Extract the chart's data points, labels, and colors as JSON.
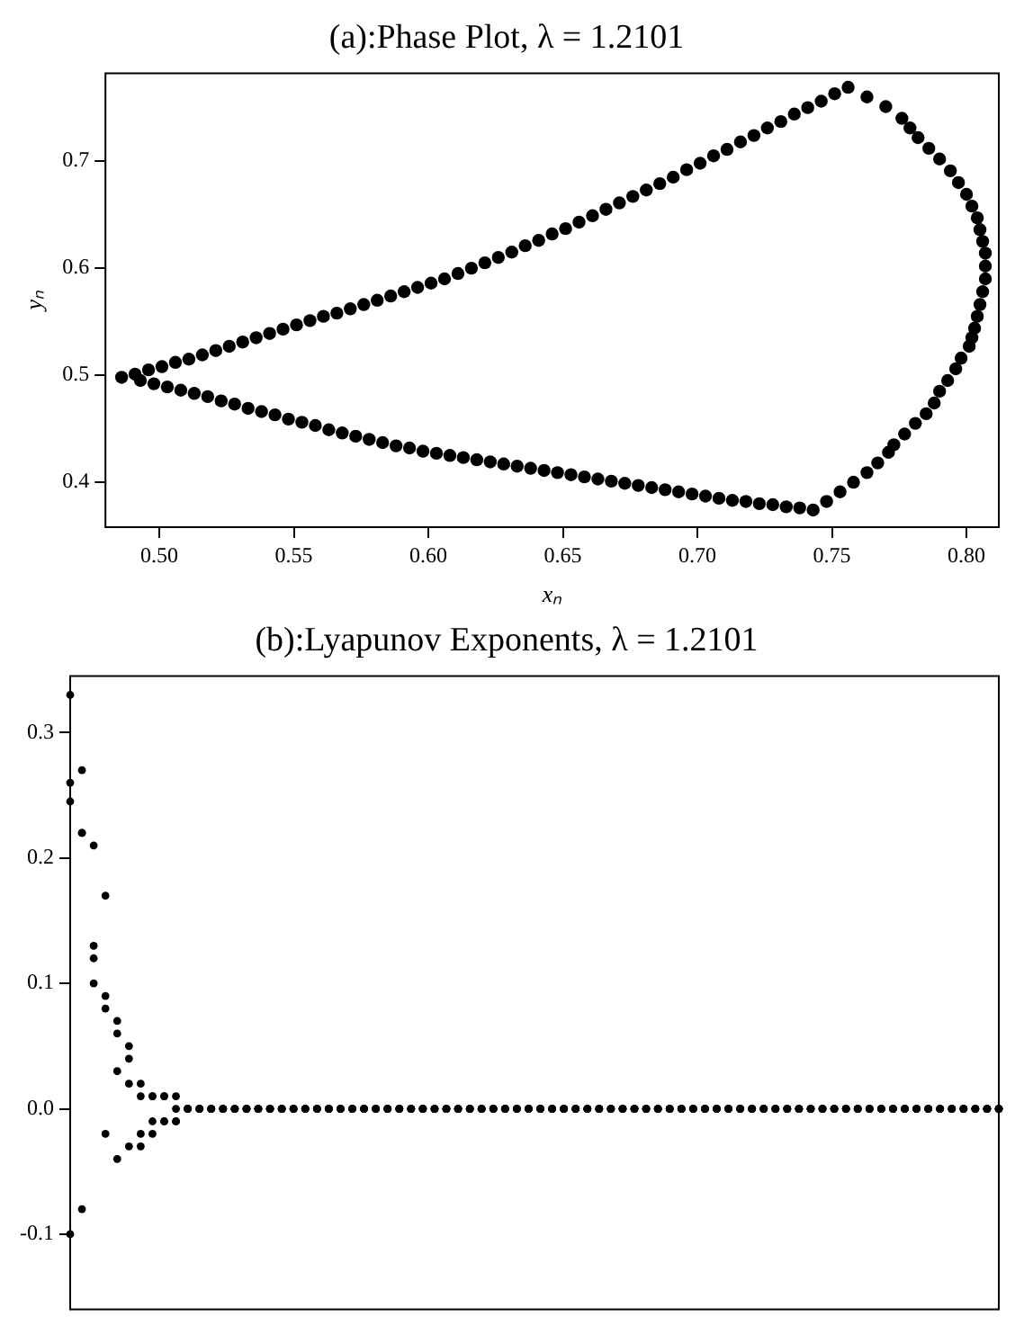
{
  "chart_data": [
    {
      "type": "scatter",
      "title": "(a):Phase Plot, λ = 1.2101",
      "xlabel": "xₙ",
      "ylabel": "yₙ",
      "marker": "circle",
      "xlim": [
        0.48,
        0.812
      ],
      "ylim": [
        0.358,
        0.782
      ],
      "xticks": [
        {
          "value": 0.5,
          "label": "0.50"
        },
        {
          "value": 0.55,
          "label": "0.55"
        },
        {
          "value": 0.6,
          "label": "0.60"
        },
        {
          "value": 0.65,
          "label": "0.65"
        },
        {
          "value": 0.7,
          "label": "0.70"
        },
        {
          "value": 0.75,
          "label": "0.75"
        },
        {
          "value": 0.8,
          "label": "0.80"
        }
      ],
      "yticks": [
        0.4,
        0.5,
        0.6,
        0.7
      ],
      "series": [
        {
          "color": "#000000",
          "x": [
            0.486,
            0.491,
            0.496,
            0.501,
            0.506,
            0.511,
            0.516,
            0.521,
            0.526,
            0.531,
            0.536,
            0.541,
            0.546,
            0.551,
            0.556,
            0.561,
            0.566,
            0.571,
            0.576,
            0.581,
            0.586,
            0.591,
            0.596,
            0.601,
            0.606,
            0.611,
            0.616,
            0.621,
            0.626,
            0.631,
            0.636,
            0.641,
            0.646,
            0.651,
            0.656,
            0.661,
            0.666,
            0.671,
            0.676,
            0.681,
            0.686,
            0.691,
            0.696,
            0.701,
            0.706,
            0.711,
            0.716,
            0.721,
            0.726,
            0.731,
            0.736,
            0.741,
            0.746,
            0.751,
            0.756,
            0.763,
            0.77,
            0.776,
            0.779,
            0.782,
            0.786,
            0.79,
            0.794,
            0.797,
            0.8,
            0.802,
            0.804,
            0.805,
            0.806,
            0.807,
            0.807,
            0.807,
            0.806,
            0.805,
            0.804,
            0.803,
            0.802,
            0.801,
            0.798,
            0.796,
            0.793,
            0.79,
            0.788,
            0.785,
            0.781,
            0.777,
            0.773,
            0.771,
            0.767,
            0.763,
            0.758,
            0.753,
            0.748,
            0.743,
            0.738,
            0.733,
            0.728,
            0.723,
            0.718,
            0.713,
            0.708,
            0.703,
            0.698,
            0.693,
            0.688,
            0.683,
            0.678,
            0.673,
            0.668,
            0.663,
            0.658,
            0.653,
            0.648,
            0.643,
            0.638,
            0.633,
            0.628,
            0.623,
            0.618,
            0.613,
            0.608,
            0.603,
            0.598,
            0.593,
            0.588,
            0.583,
            0.578,
            0.573,
            0.568,
            0.563,
            0.558,
            0.553,
            0.548,
            0.543,
            0.538,
            0.533,
            0.528,
            0.523,
            0.518,
            0.513,
            0.508,
            0.503,
            0.498,
            0.493
          ],
          "values": [
            0.498,
            0.501,
            0.505,
            0.508,
            0.512,
            0.515,
            0.519,
            0.523,
            0.527,
            0.531,
            0.535,
            0.539,
            0.543,
            0.547,
            0.551,
            0.555,
            0.558,
            0.562,
            0.566,
            0.57,
            0.574,
            0.578,
            0.582,
            0.586,
            0.59,
            0.595,
            0.6,
            0.605,
            0.61,
            0.615,
            0.621,
            0.626,
            0.632,
            0.637,
            0.643,
            0.649,
            0.655,
            0.661,
            0.667,
            0.673,
            0.679,
            0.685,
            0.692,
            0.698,
            0.705,
            0.711,
            0.718,
            0.724,
            0.731,
            0.737,
            0.744,
            0.75,
            0.756,
            0.763,
            0.769,
            0.76,
            0.751,
            0.74,
            0.731,
            0.722,
            0.712,
            0.702,
            0.691,
            0.68,
            0.669,
            0.658,
            0.647,
            0.636,
            0.625,
            0.614,
            0.602,
            0.59,
            0.578,
            0.566,
            0.555,
            0.544,
            0.535,
            0.527,
            0.516,
            0.506,
            0.495,
            0.485,
            0.474,
            0.464,
            0.455,
            0.445,
            0.435,
            0.428,
            0.418,
            0.409,
            0.4,
            0.391,
            0.382,
            0.374,
            0.376,
            0.377,
            0.379,
            0.38,
            0.382,
            0.383,
            0.385,
            0.387,
            0.389,
            0.391,
            0.393,
            0.395,
            0.397,
            0.399,
            0.401,
            0.403,
            0.405,
            0.407,
            0.409,
            0.411,
            0.413,
            0.415,
            0.417,
            0.419,
            0.421,
            0.423,
            0.425,
            0.427,
            0.429,
            0.432,
            0.434,
            0.437,
            0.44,
            0.443,
            0.446,
            0.449,
            0.453,
            0.456,
            0.459,
            0.463,
            0.466,
            0.469,
            0.473,
            0.476,
            0.48,
            0.483,
            0.486,
            0.489,
            0.492,
            0.495
          ]
        }
      ]
    },
    {
      "type": "scatter",
      "title": "(b):Lyapunov Exponents, λ = 1.2101",
      "marker": "circle",
      "tick_labels": "y",
      "ylim": [
        -0.16,
        0.345
      ],
      "yticks": [
        -0.1,
        {
          "value": 0,
          "label": "0.0"
        },
        0.1,
        0.2,
        0.3
      ],
      "categories": [
        null,
        null,
        null,
        null,
        null,
        null,
        null,
        null,
        null,
        null,
        null,
        null,
        null,
        null,
        null,
        null,
        null,
        null,
        null,
        null,
        null,
        null,
        null,
        null,
        null,
        null,
        null,
        null,
        null,
        null,
        null,
        null,
        null,
        null,
        null,
        null,
        null,
        null,
        null,
        null,
        null,
        null,
        null,
        null,
        null,
        null,
        null,
        null,
        null,
        null,
        null,
        null,
        null,
        null,
        null,
        null,
        null,
        null,
        null,
        null,
        null,
        null,
        null,
        null,
        null,
        null,
        null,
        null,
        null,
        null,
        null,
        null,
        null,
        null,
        null,
        null,
        null,
        null,
        null,
        null
      ],
      "series": [
        {
          "color": "#000000",
          "values": [
            0.33,
            0.27,
            0.13,
            0.09,
            0.07,
            0.05,
            0.02,
            0.01,
            0.01,
            0.01,
            0,
            0,
            0,
            0,
            0,
            0,
            0,
            0,
            0,
            0,
            0,
            0,
            0,
            0,
            0,
            0,
            0,
            0,
            0,
            0,
            0,
            0,
            0,
            0,
            0,
            0,
            0,
            0,
            0,
            0,
            0,
            0,
            0,
            0,
            0,
            0,
            0,
            0,
            0,
            0,
            0,
            0,
            0,
            0,
            0,
            0,
            0,
            0,
            0,
            0,
            0,
            0,
            0,
            0,
            0,
            0,
            0,
            0,
            0,
            0,
            0,
            0,
            0,
            0,
            0,
            0,
            0,
            0,
            0,
            0
          ]
        },
        {
          "color": "#000000",
          "values": [
            0.26,
            0.22,
            0.12,
            0.08,
            0.06,
            0.04,
            -0.03,
            -0.02,
            -0.01,
            -0.01,
            0,
            0,
            0,
            0,
            0,
            0,
            0,
            0,
            0,
            0,
            0,
            0,
            0,
            0,
            0,
            0,
            0,
            0,
            0,
            0,
            0,
            0,
            0,
            0,
            0,
            0,
            0,
            0,
            0,
            0,
            0,
            0,
            0,
            0,
            0,
            0,
            0,
            0,
            0,
            0,
            0,
            0,
            0,
            0,
            0,
            0,
            0,
            0,
            0,
            0,
            0,
            0,
            0,
            0,
            0,
            0,
            0,
            0,
            0,
            0,
            0,
            0,
            0,
            0,
            0,
            0,
            0,
            0,
            0,
            0
          ]
        },
        {
          "color": "#000000",
          "values": [
            -0.1,
            -0.08,
            0.21,
            0.17,
            -0.04,
            -0.03,
            0.01,
            -0.01,
            0.01,
            -0.01,
            0,
            0,
            0,
            0,
            0,
            0,
            0,
            0,
            0,
            0,
            0,
            0,
            0,
            0,
            0,
            0,
            0,
            0,
            0,
            0,
            0,
            0,
            0,
            0,
            0,
            0,
            0,
            0,
            0,
            0,
            0,
            0,
            0,
            0,
            0,
            0,
            0,
            0,
            0,
            0,
            0,
            0,
            0,
            0,
            0,
            0,
            0,
            0,
            0,
            0,
            0,
            0,
            0,
            0,
            0,
            0,
            0,
            0,
            0,
            0,
            0,
            0,
            0,
            0,
            0,
            0,
            0,
            0,
            0,
            0
          ]
        },
        {
          "color": "#000000",
          "values": [
            0.245,
            0.22,
            0.1,
            -0.02,
            0.03,
            0.02,
            -0.02,
            0.01,
            -0.01,
            0,
            0,
            0,
            0,
            0,
            0,
            0,
            0,
            0,
            0,
            0,
            0,
            0,
            0,
            0,
            0,
            0,
            0,
            0,
            0,
            0,
            0,
            0,
            0,
            0,
            0,
            0,
            0,
            0,
            0,
            0,
            0,
            0,
            0,
            0,
            0,
            0,
            0,
            0,
            0,
            0,
            0,
            0,
            0,
            0,
            0,
            0,
            0,
            0,
            0,
            0,
            0,
            0,
            0,
            0,
            0,
            0,
            0,
            0,
            0,
            0,
            0,
            0,
            0,
            0,
            0,
            0,
            0,
            0,
            0,
            0
          ]
        }
      ]
    }
  ]
}
